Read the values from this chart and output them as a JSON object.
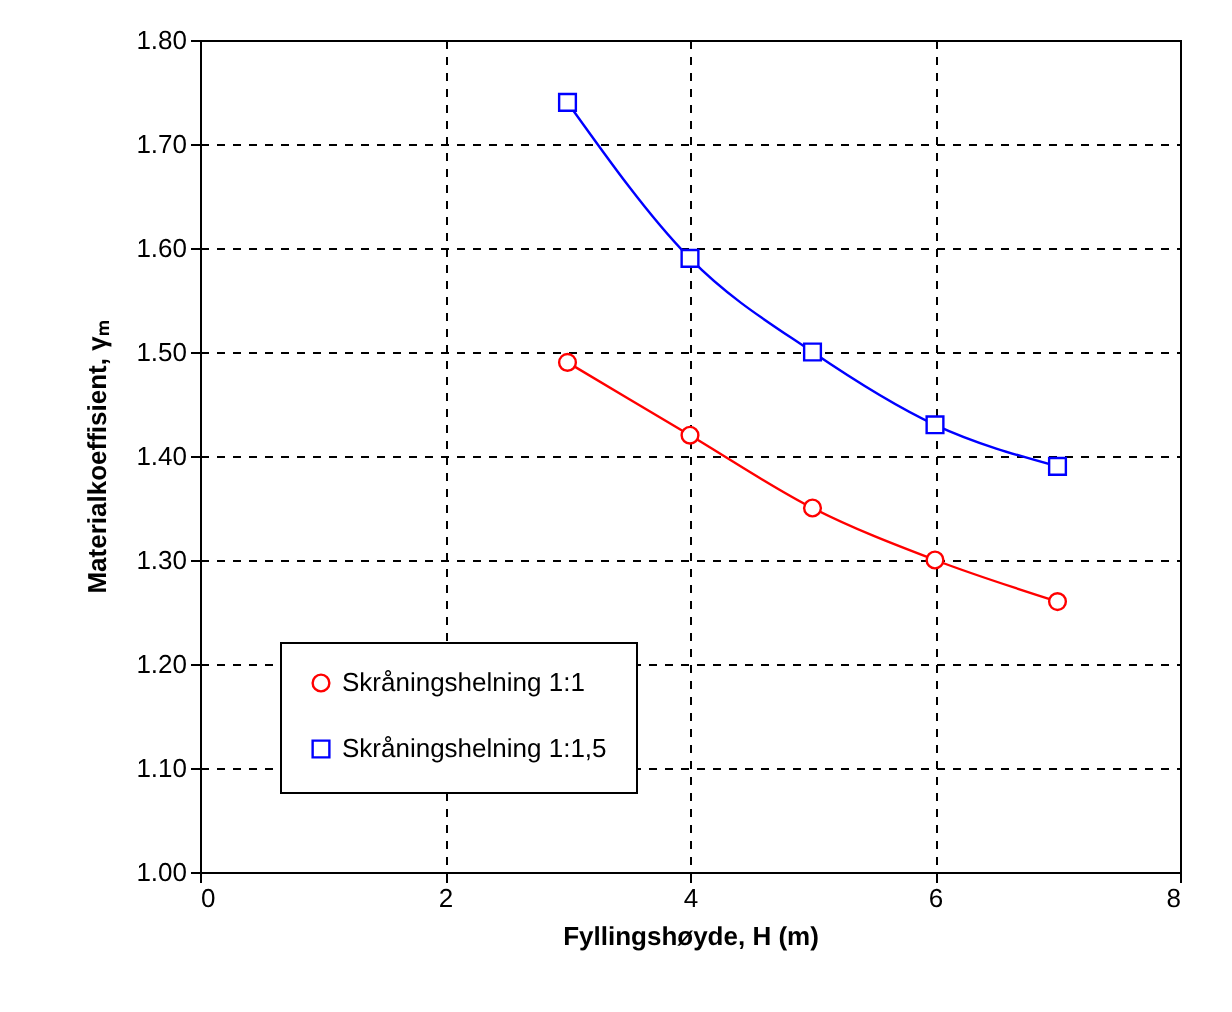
{
  "chart_data": {
    "type": "line",
    "xlabel": "Fyllingshøyde, H (m)",
    "ylabel": "Materialkoeffisient,  γₘ",
    "xlim": [
      0,
      8
    ],
    "xticks": [
      0,
      2,
      4,
      6,
      8
    ],
    "ylim": [
      1.0,
      1.8
    ],
    "yticks": [
      {
        "value": 1.0,
        "label": "1.00"
      },
      {
        "value": 1.1,
        "label": "1.10"
      },
      {
        "value": 1.2,
        "label": "1.20"
      },
      {
        "value": 1.3,
        "label": "1.30"
      },
      {
        "value": 1.4,
        "label": "1.40"
      },
      {
        "value": 1.5,
        "label": "1.50"
      },
      {
        "value": 1.6,
        "label": "1.60"
      },
      {
        "value": 1.7,
        "label": "1.70"
      },
      {
        "value": 1.8,
        "label": "1.80"
      }
    ],
    "grid": true,
    "legend": "bottom left",
    "line_style": "solid",
    "x": [
      3,
      4,
      5,
      6,
      7
    ],
    "series": [
      {
        "name": "Skråningshelning 1:1",
        "color": "#ff0000",
        "marker": "circle",
        "values": [
          1.49,
          1.42,
          1.35,
          1.3,
          1.26
        ]
      },
      {
        "name": "Skråningshelning 1:1,5",
        "color": "#0000ff",
        "marker": "square",
        "values": [
          1.74,
          1.59,
          1.5,
          1.43,
          1.39
        ]
      }
    ]
  }
}
